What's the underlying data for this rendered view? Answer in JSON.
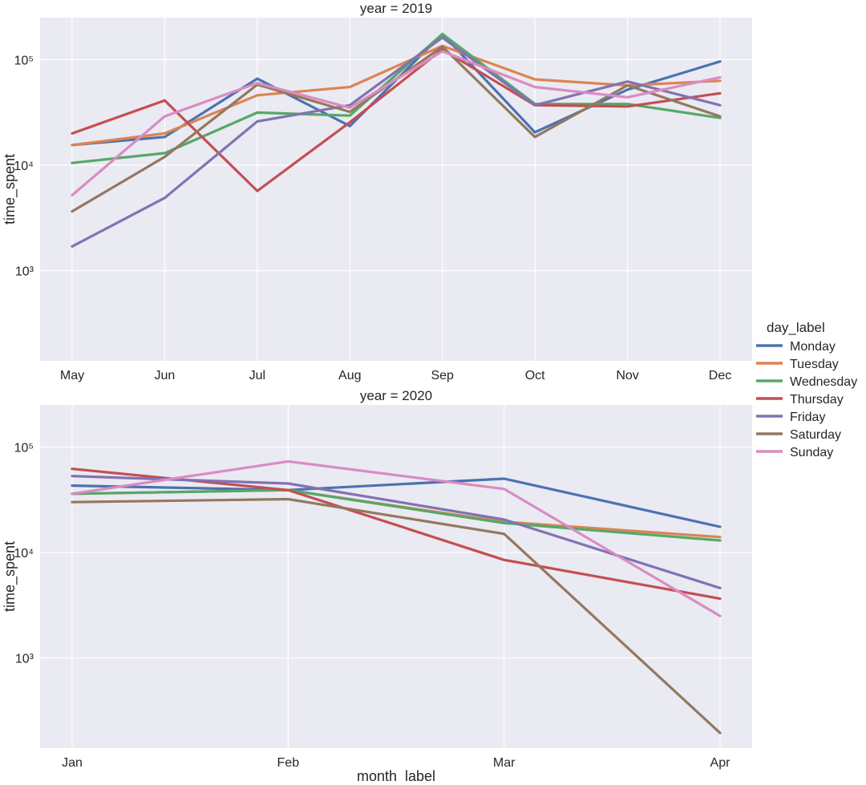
{
  "chart_data": {
    "type": "line",
    "y_scale": "log",
    "grid": true,
    "legend": {
      "title": "day_label",
      "placement": "right",
      "entries": [
        {
          "name": "Monday",
          "color": "#4c72b0"
        },
        {
          "name": "Tuesday",
          "color": "#dd8452"
        },
        {
          "name": "Wednesday",
          "color": "#55a868"
        },
        {
          "name": "Thursday",
          "color": "#c44e52"
        },
        {
          "name": "Friday",
          "color": "#8172b3"
        },
        {
          "name": "Saturday",
          "color": "#937860"
        },
        {
          "name": "Sunday",
          "color": "#da8bc3"
        }
      ]
    },
    "panels": [
      {
        "title": "year = 2019",
        "xlabel": "",
        "ylabel": "time_spent",
        "ylim": [
          140,
          250000
        ],
        "yticks": [
          {
            "value": 1000,
            "label": "10³"
          },
          {
            "value": 10000,
            "label": "10⁴"
          },
          {
            "value": 100000,
            "label": "10⁵"
          }
        ],
        "categories": [
          "May",
          "Jun",
          "Jul",
          "Aug",
          "Sep",
          "Oct",
          "Nov",
          "Dec"
        ],
        "series": [
          {
            "name": "Monday",
            "values": [
              15500,
              18500,
              66000,
              23500,
              175000,
              20500,
              52000,
              96000
            ]
          },
          {
            "name": "Tuesday",
            "values": [
              15500,
              20000,
              46000,
              55000,
              135000,
              65000,
              57000,
              63000
            ]
          },
          {
            "name": "Wednesday",
            "values": [
              10500,
              13000,
              31500,
              29500,
              175000,
              38000,
              38000,
              28000
            ]
          },
          {
            "name": "Thursday",
            "values": [
              20000,
              41000,
              5700,
              25500,
              125000,
              37000,
              36000,
              48000
            ]
          },
          {
            "name": "Friday",
            "values": [
              1700,
              4900,
              26000,
              37000,
              162000,
              37000,
              62000,
              37000
            ]
          },
          {
            "name": "Saturday",
            "values": [
              3650,
              12000,
              58000,
              32000,
              133000,
              18500,
              57000,
              29000
            ]
          },
          {
            "name": "Sunday",
            "values": [
              5200,
              29000,
              60000,
              35000,
              120000,
              55000,
              44000,
              68000
            ]
          }
        ]
      },
      {
        "title": "year = 2020",
        "xlabel": "month_label",
        "ylabel": "time_spent",
        "ylim": [
          140,
          250000
        ],
        "yticks": [
          {
            "value": 1000,
            "label": "10³"
          },
          {
            "value": 10000,
            "label": "10⁴"
          },
          {
            "value": 100000,
            "label": "10⁵"
          }
        ],
        "categories": [
          "Jan",
          "Feb",
          "Mar",
          "Apr"
        ],
        "series": [
          {
            "name": "Monday",
            "values": [
              43000,
              39000,
              50000,
              17500
            ]
          },
          {
            "name": "Tuesday",
            "values": [
              36000,
              39000,
              19500,
              14000
            ]
          },
          {
            "name": "Wednesday",
            "values": [
              36000,
              39000,
              19000,
              13000
            ]
          },
          {
            "name": "Thursday",
            "values": [
              62000,
              39000,
              8500,
              3650
            ]
          },
          {
            "name": "Friday",
            "values": [
              53000,
              45000,
              20500,
              4600
            ]
          },
          {
            "name": "Saturday",
            "values": [
              30000,
              32000,
              15000,
              195
            ]
          },
          {
            "name": "Sunday",
            "values": [
              36000,
              73000,
              40000,
              2500
            ]
          }
        ]
      }
    ]
  }
}
